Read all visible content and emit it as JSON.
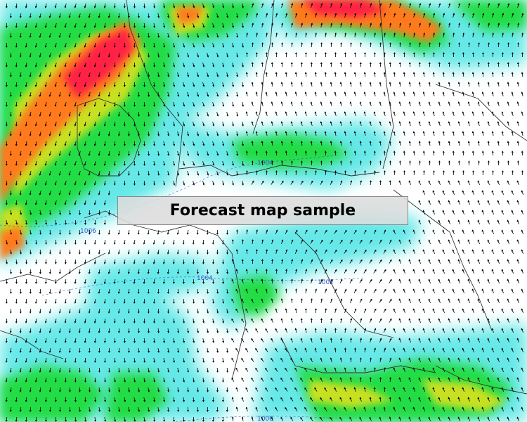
{
  "map": {
    "title": "Forecast map sample",
    "isobar_labels": [
      "1004",
      "1006",
      "1004",
      "1002",
      "1000"
    ],
    "colors": {
      "land": "#ffffff",
      "border": "#333333",
      "isobar": "#3a55c8",
      "wind_light": "#66e8e8",
      "wind_moderate": "#22dd44",
      "wind_fresh": "#c8e020",
      "wind_strong": "#ff7a1a",
      "wind_gale": "#ff2244"
    },
    "icons": [
      "wind-arrow-icon"
    ]
  }
}
